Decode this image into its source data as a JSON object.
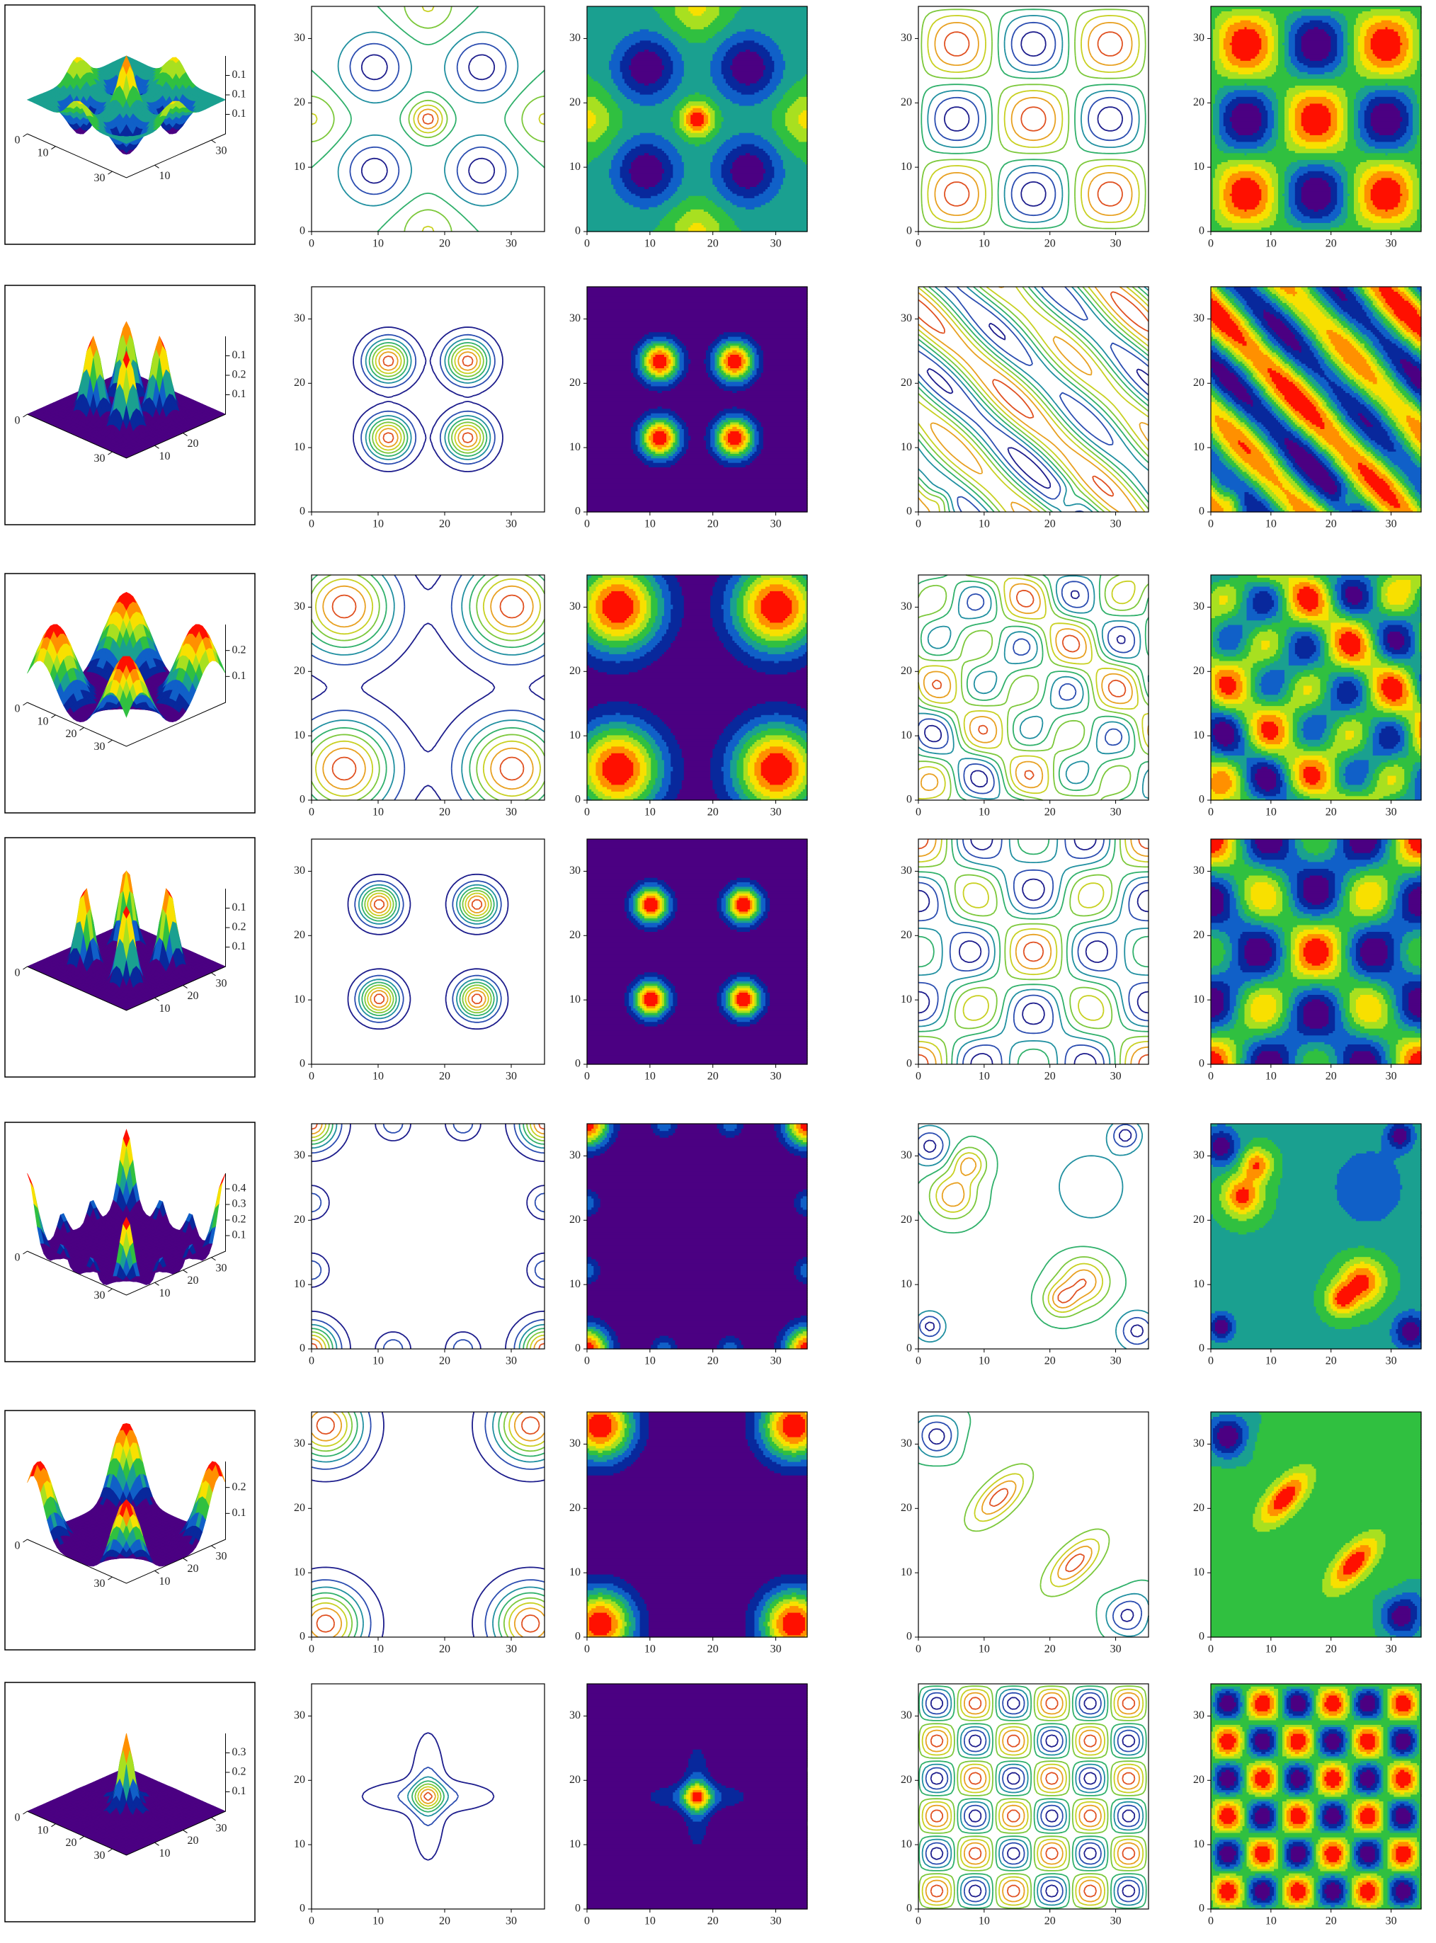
{
  "axis_ticks": [
    0,
    10,
    20,
    30
  ],
  "axis_range": [
    0,
    35
  ],
  "rows": [
    {
      "surface": {
        "left_labels": [
          0,
          10,
          30
        ],
        "right_labels": [
          10,
          30
        ],
        "z_labels": [
          0.1,
          0.1,
          0.1
        ]
      }
    },
    {
      "surface": {
        "left_labels": [
          0,
          30
        ],
        "right_labels": [
          10,
          20
        ],
        "z_labels": [
          0.1,
          0.2,
          0.1
        ]
      }
    },
    {
      "surface": {
        "left_labels": [
          0,
          10,
          20,
          30
        ],
        "right_labels": [],
        "z_labels": [
          0.1,
          0.2
        ]
      }
    },
    {
      "surface": {
        "left_labels": [
          0
        ],
        "right_labels": [
          10,
          20,
          30
        ],
        "z_labels": [
          0.1,
          0.2,
          0.1
        ]
      }
    },
    {
      "surface": {
        "left_labels": [
          0,
          30
        ],
        "right_labels": [
          10,
          20,
          30
        ],
        "z_labels": [
          0.1,
          0.2,
          0.3,
          0.4
        ]
      }
    },
    {
      "surface": {
        "left_labels": [
          0,
          30
        ],
        "right_labels": [
          10,
          20,
          30
        ],
        "z_labels": [
          0.1,
          0.2
        ]
      }
    },
    {
      "surface": {
        "left_labels": [
          0,
          10,
          20,
          30
        ],
        "right_labels": [
          10,
          20,
          30
        ],
        "z_labels": [
          0.1,
          0.2,
          0.3
        ]
      }
    }
  ]
}
